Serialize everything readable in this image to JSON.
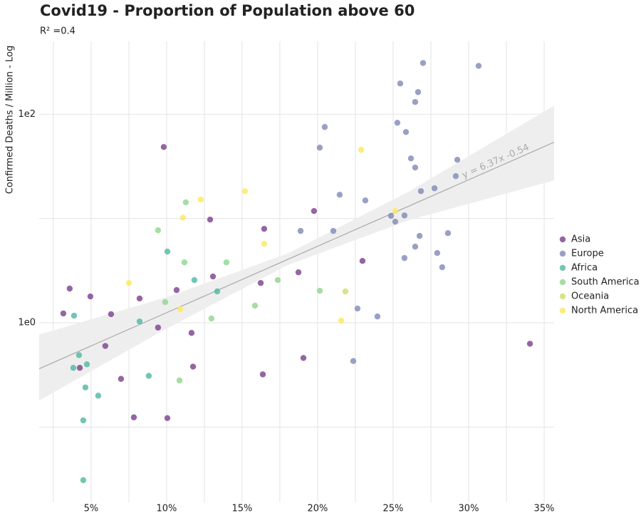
{
  "chart_data": {
    "type": "scatter",
    "title": "Covid19 - Proportion of Population above 60",
    "subtitle": "R² =0.4",
    "y_label": "Confirmed Deaths / Million - Log",
    "xlim": [
      1.56,
      35.66
    ],
    "ylim": [
      0.019,
      500
    ],
    "y_log": true,
    "grid": true,
    "legend": "right",
    "xticks": [
      {
        "value": 5,
        "label": "5%"
      },
      {
        "value": 10,
        "label": "10%"
      },
      {
        "value": 15,
        "label": "15%"
      },
      {
        "value": 20,
        "label": "20%"
      },
      {
        "value": 25,
        "label": "25%"
      },
      {
        "value": 30,
        "label": "30%"
      },
      {
        "value": 35,
        "label": "35%"
      }
    ],
    "x_minor_gridlines": [
      2.5,
      7.5,
      12.5,
      17.5,
      22.5,
      27.5,
      32.5
    ],
    "yticks": [
      {
        "value": 1,
        "label": "1e0"
      },
      {
        "value": 100,
        "label": "1e2"
      }
    ],
    "y_minor_gridlines": [
      0.1,
      10
    ],
    "trendline": {
      "label": "y = 6.37x -0.54",
      "slope": 6.37,
      "intercept": -0.54,
      "color": "#aaaaaa"
    },
    "confidence_band": {
      "x": [
        1.56,
        10,
        18,
        26,
        35.66
      ],
      "lower": [
        0.18,
        0.88,
        3.57,
        9.6,
        23.2
      ],
      "upper": [
        0.77,
        1.76,
        4.6,
        18,
        121
      ],
      "color": "#eeeeee"
    },
    "series": [
      {
        "name": "Asia",
        "color": "#7b3f8c",
        "x": [
          3.16,
          3.58,
          4.95,
          6.32,
          9.81,
          9.43,
          5.94,
          4.25,
          6.98,
          8.21,
          7.83,
          10.05,
          10.66,
          11.65,
          11.75,
          12.88,
          13.07,
          16.23,
          16.46,
          16.37,
          18.73,
          19.06,
          19.76,
          22.97,
          34.06
        ],
        "values": [
          1.23,
          2.13,
          1.79,
          1.21,
          48.5,
          0.9,
          0.6,
          0.37,
          0.29,
          1.71,
          0.124,
          0.122,
          2.06,
          0.8,
          0.38,
          9.77,
          2.78,
          2.41,
          7.96,
          0.32,
          3.05,
          0.46,
          11.8,
          3.92,
          0.63
        ]
      },
      {
        "name": "Europe",
        "color": "#8088b5",
        "x": [
          20.47,
          20.14,
          21.46,
          23.16,
          21.04,
          18.87,
          22.64,
          23.96,
          22.36,
          26.98,
          30.66,
          25.47,
          26.65,
          26.46,
          25.28,
          25.85,
          26.18,
          26.46,
          29.25,
          29.15,
          27.74,
          26.84,
          24.86,
          25.75,
          25.14,
          28.63,
          26.75,
          26.46,
          27.92,
          25.75,
          28.25
        ],
        "values": [
          75.4,
          47.8,
          16.9,
          14.9,
          7.6,
          7.6,
          1.37,
          1.15,
          0.43,
          310,
          291,
          197,
          163,
          131,
          82.8,
          67.5,
          37.7,
          30.8,
          36.6,
          25.5,
          19.5,
          18.3,
          10.6,
          10.7,
          9.32,
          7.24,
          6.81,
          5.37,
          4.67,
          4.18,
          3.41
        ]
      },
      {
        "name": "Africa",
        "color": "#4fb8a0",
        "x": [
          3.87,
          4.2,
          3.82,
          4.72,
          4.62,
          5.47,
          4.48,
          4.48,
          8.21,
          8.82,
          10.05,
          11.84,
          13.35
        ],
        "values": [
          1.17,
          0.49,
          0.37,
          0.4,
          0.24,
          0.2,
          0.116,
          0.031,
          1.03,
          0.31,
          4.82,
          2.57,
          2.0
        ]
      },
      {
        "name": "South America",
        "color": "#8fd68b",
        "x": [
          9.43,
          9.91,
          10.85,
          11.18,
          11.27,
          12.97,
          13.96,
          15.85,
          17.36,
          20.14
        ],
        "values": [
          7.71,
          1.58,
          0.28,
          3.8,
          14.3,
          1.1,
          3.8,
          1.46,
          2.57,
          2.03
        ]
      },
      {
        "name": "Oceania",
        "color": "#c7e26a",
        "x": [
          21.84
        ],
        "values": [
          2.0
        ]
      },
      {
        "name": "North America",
        "color": "#fde95a",
        "x": [
          7.5,
          10.9,
          11.08,
          12.26,
          15.19,
          16.46,
          22.88,
          25.14,
          21.56
        ],
        "values": [
          2.41,
          1.35,
          10.2,
          15.2,
          18.3,
          5.73,
          45.6,
          11.8,
          1.05
        ]
      }
    ]
  }
}
